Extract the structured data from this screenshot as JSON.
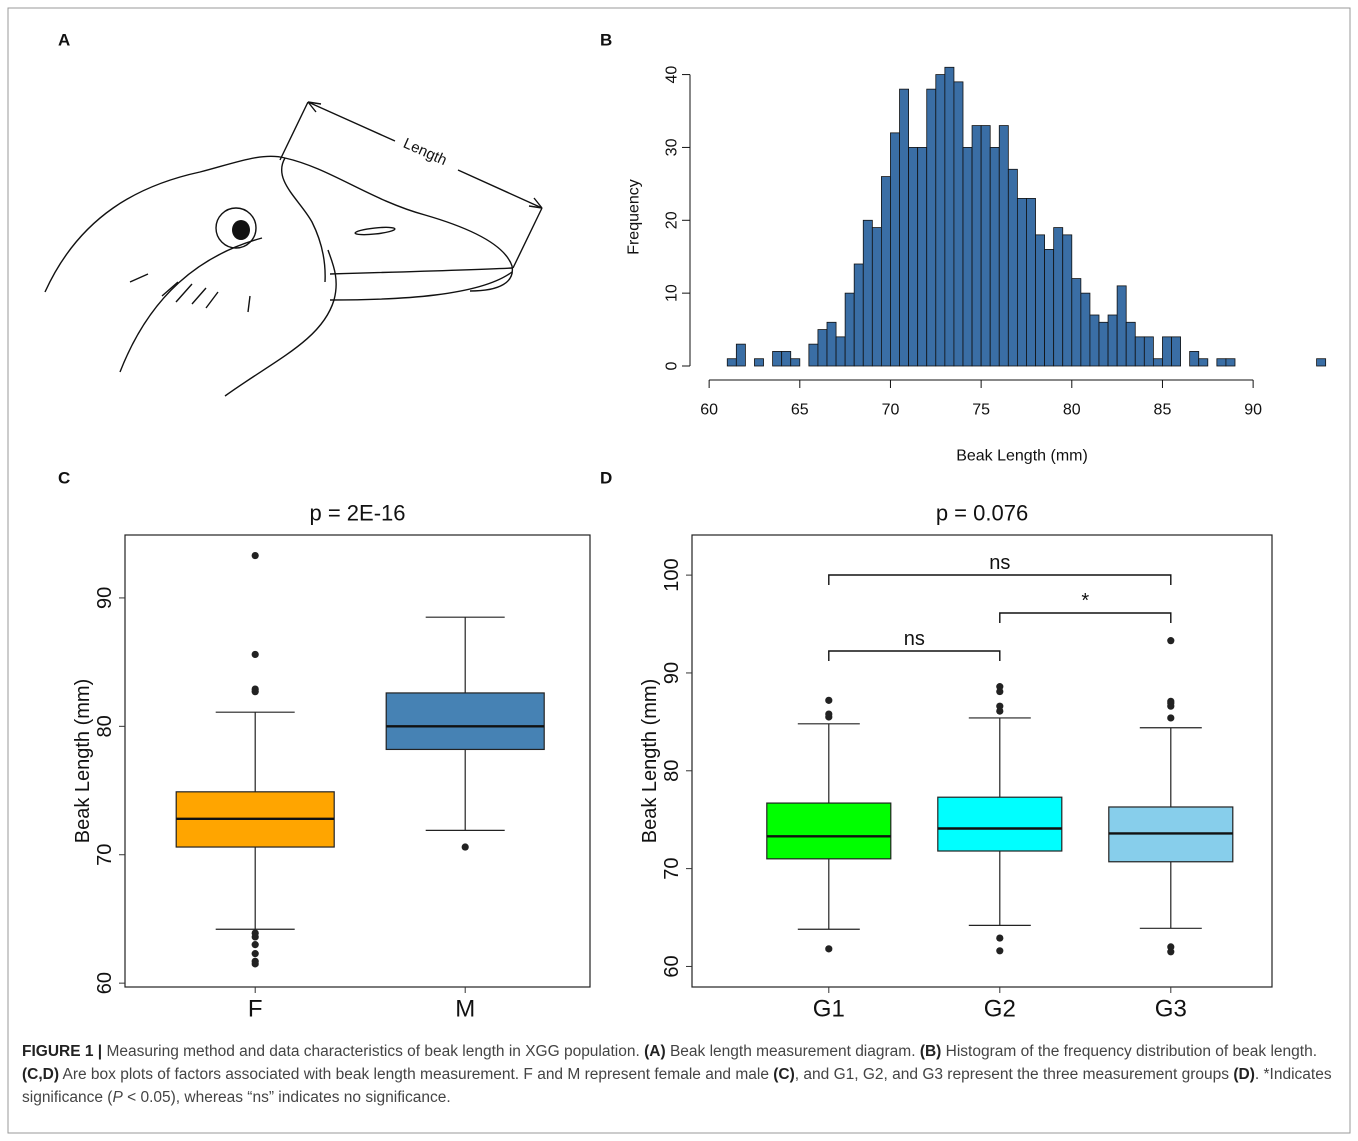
{
  "panel_labels": [
    "A",
    "B",
    "C",
    "D"
  ],
  "diagram": {
    "label": "Length"
  },
  "chart_data": [
    {
      "type": "histogram",
      "xlabel": "Beak Length (mm)",
      "ylabel": "Frequency",
      "color": "#3a6ea5",
      "bins": [
        61,
        61.5,
        62,
        62.5,
        63,
        63.5,
        64,
        64.5,
        65,
        65.5,
        66,
        66.5,
        67,
        67.5,
        68,
        68.5,
        69,
        69.5,
        70,
        70.5,
        71,
        71.5,
        72,
        72.5,
        73,
        73.5,
        74,
        74.5,
        75,
        75.5,
        76,
        76.5,
        77,
        77.5,
        78,
        78.5,
        79,
        79.5,
        80,
        80.5,
        81,
        81.5,
        82,
        82.5,
        83,
        83.5,
        84,
        84.5,
        85,
        85.5,
        86,
        86.5,
        87,
        87.5,
        88,
        88.5,
        89,
        89.5,
        90,
        90.5,
        91,
        91.5,
        92,
        92.5,
        93,
        93.5,
        94
      ],
      "counts": [
        1,
        3,
        0,
        1,
        0,
        2,
        2,
        1,
        0,
        3,
        5,
        6,
        4,
        10,
        14,
        20,
        19,
        26,
        32,
        38,
        30,
        30,
        38,
        40,
        41,
        39,
        30,
        33,
        33,
        30,
        33,
        27,
        23,
        23,
        18,
        16,
        19,
        18,
        12,
        10,
        7,
        6,
        7,
        11,
        6,
        4,
        4,
        1,
        4,
        4,
        0,
        2,
        1,
        0,
        1,
        1,
        0,
        0,
        0,
        0,
        0,
        0,
        0,
        0,
        0,
        1
      ],
      "xlim": [
        59,
        94.46
      ],
      "xticks": [
        60,
        65,
        70,
        75,
        80,
        85,
        90
      ],
      "ylim": [
        0,
        42
      ],
      "yticks": [
        0,
        10,
        20,
        30,
        40
      ]
    },
    {
      "type": "box",
      "title": "p = 2E-16",
      "ylabel": "Beak Length (mm)",
      "categories": [
        "F",
        "M"
      ],
      "ylim": [
        59.7,
        94.9
      ],
      "yticks": [
        60,
        70,
        80,
        90
      ],
      "boxes": [
        {
          "color": "#ffa500",
          "whisker_low": 64.2,
          "q1": 70.6,
          "median": 72.8,
          "q3": 74.9,
          "whisker_high": 81.1,
          "outliers": [
            82.7,
            82.9,
            85.6,
            93.3,
            63.9,
            63.6,
            63.0,
            62.3,
            61.7,
            61.5
          ]
        },
        {
          "color": "#4682b4",
          "whisker_low": 71.9,
          "q1": 78.2,
          "median": 80.0,
          "q3": 82.6,
          "whisker_high": 88.5,
          "outliers": [
            70.6
          ]
        }
      ]
    },
    {
      "type": "box",
      "title": "p = 0.076",
      "ylabel": "Beak Length (mm)",
      "categories": [
        "G1",
        "G2",
        "G3"
      ],
      "ylim": [
        57.9,
        104.1
      ],
      "yticks": [
        60,
        70,
        80,
        90,
        100
      ],
      "boxes": [
        {
          "color": "#00ff00",
          "whisker_low": 63.8,
          "q1": 71.0,
          "median": 73.3,
          "q3": 76.7,
          "whisker_high": 84.8,
          "outliers": [
            85.5,
            85.8,
            87.2,
            61.8
          ]
        },
        {
          "color": "#00ffff",
          "whisker_low": 64.2,
          "q1": 71.8,
          "median": 74.1,
          "q3": 77.3,
          "whisker_high": 85.4,
          "outliers": [
            86.1,
            86.6,
            88.1,
            88.6,
            62.9,
            61.6
          ]
        },
        {
          "color": "#87ceeb",
          "whisker_low": 63.9,
          "q1": 70.7,
          "median": 73.6,
          "q3": 76.3,
          "whisker_high": 84.4,
          "outliers": [
            85.4,
            86.6,
            86.9,
            87.1,
            93.3,
            62.0,
            61.5
          ]
        }
      ],
      "brackets": [
        {
          "from": 0,
          "to": 1,
          "label": "ns"
        },
        {
          "from": 1,
          "to": 2,
          "label": "*"
        },
        {
          "from": 0,
          "to": 2,
          "label": "ns"
        }
      ]
    }
  ],
  "caption": [
    {
      "text": "FIGURE 1 |",
      "bold": true
    },
    {
      "text": " Measuring method and data characteristics of beak length in XGG population. "
    },
    {
      "text": "(A)",
      "bold": true
    },
    {
      "text": " Beak length measurement diagram. "
    },
    {
      "text": "(B)",
      "bold": true
    },
    {
      "text": " Histogram of the frequency distribution of beak length. "
    },
    {
      "text": "(C,D)",
      "bold": true
    },
    {
      "text": " Are box plots of factors associated with beak length measurement. F and M represent female and male "
    },
    {
      "text": "(C)",
      "bold": true
    },
    {
      "text": ", and G1, G2, and G3 represent the three measurement groups "
    },
    {
      "text": "(D)",
      "bold": true
    },
    {
      "text": ". *Indicates significance ("
    },
    {
      "text": "P",
      "italic": true
    },
    {
      "text": " < 0.05), whereas “ns” indicates no significance."
    }
  ]
}
